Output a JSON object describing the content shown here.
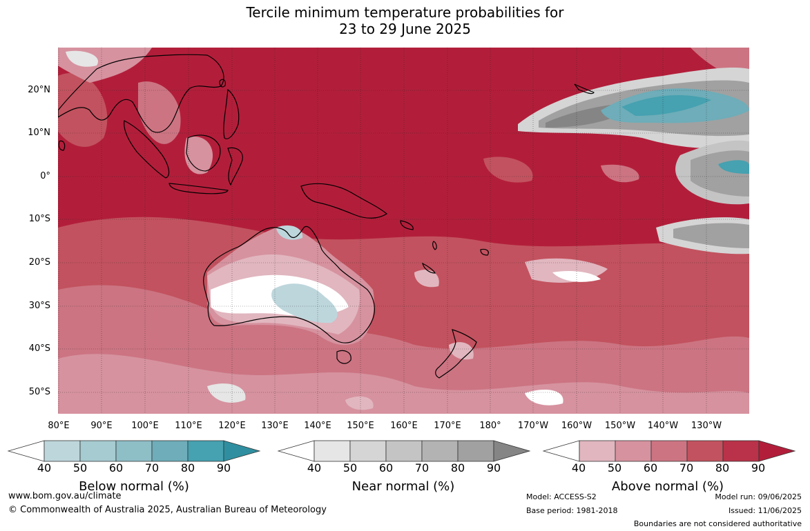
{
  "title": {
    "line1": "Tercile minimum temperature probabilities for",
    "line2": "23 to 29 June 2025"
  },
  "map": {
    "latitude_labels": [
      "20°N",
      "10°N",
      "0°",
      "10°S",
      "20°S",
      "30°S",
      "40°S",
      "50°S"
    ],
    "longitude_labels": [
      "80°E",
      "90°E",
      "100°E",
      "110°E",
      "120°E",
      "130°E",
      "140°E",
      "150°E",
      "160°E",
      "170°E",
      "180°",
      "170°W",
      "160°W",
      "150°W",
      "140°W",
      "130°W"
    ]
  },
  "legends": [
    {
      "name": "Below normal (%)",
      "ticks": [
        "40",
        "50",
        "60",
        "70",
        "80",
        "90"
      ],
      "colors": [
        "#ffffff",
        "#bdd6dc",
        "#a6cbd1",
        "#8ebec6",
        "#6eadb9",
        "#46a1b0",
        "#2f8fa0"
      ]
    },
    {
      "name": "Near normal (%)",
      "ticks": [
        "40",
        "50",
        "60",
        "70",
        "80",
        "90"
      ],
      "colors": [
        "#ffffff",
        "#e6e6e6",
        "#d5d5d5",
        "#c4c4c4",
        "#b3b3b3",
        "#a1a1a1",
        "#858585"
      ]
    },
    {
      "name": "Above normal (%)",
      "ticks": [
        "40",
        "50",
        "60",
        "70",
        "80",
        "90"
      ],
      "colors": [
        "#ffffff",
        "#e1b6bf",
        "#d6929f",
        "#cc7482",
        "#c2525f",
        "#b93249",
        "#b21e3a"
      ]
    }
  ],
  "footer": {
    "website": "www.bom.gov.au/climate",
    "copyright": "© Commonwealth of Australia 2025, Australian Bureau of Meteorology",
    "model": "Model: ACCESS-S2",
    "base_period": "Base period: 1981-2018",
    "model_run": "Model run: 09/06/2025",
    "issued": "Issued: 11/06/2025",
    "disclaimer": "Boundaries are not considered authoritative"
  }
}
